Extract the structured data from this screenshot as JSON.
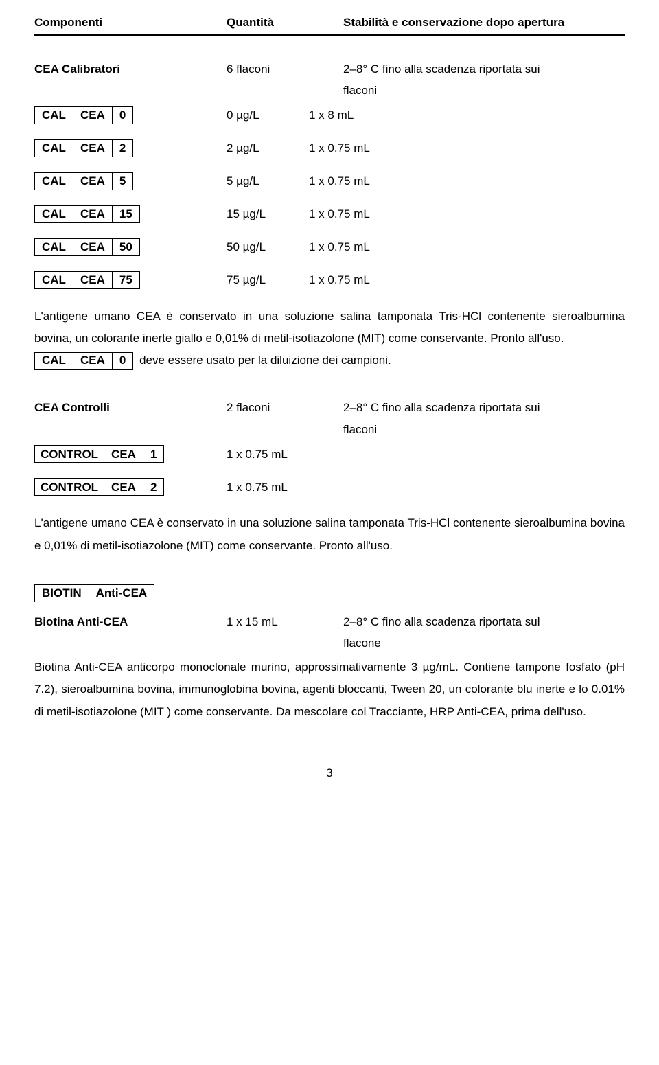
{
  "header": {
    "col1": "Componenti",
    "col2": "Quantità",
    "col3": "Stabilità e conservazione dopo apertura"
  },
  "cea_cal": {
    "title": "CEA Calibratori",
    "qty": "6 flaconi",
    "stability": "2–8° C fino alla scadenza riportata sui",
    "stability_line2": "flaconi",
    "items": [
      {
        "box": [
          "CAL",
          "CEA",
          "0"
        ],
        "val": "0 µg/L",
        "pkg": "1 x 8 mL"
      },
      {
        "box": [
          "CAL",
          "CEA",
          "2"
        ],
        "val": "2 µg/L",
        "pkg": "1 x 0.75 mL"
      },
      {
        "box": [
          "CAL",
          "CEA",
          "5"
        ],
        "val": "5 µg/L",
        "pkg": "1 x 0.75 mL"
      },
      {
        "box": [
          "CAL",
          "CEA",
          "15"
        ],
        "val": "15 µg/L",
        "pkg": "1 x 0.75 mL"
      },
      {
        "box": [
          "CAL",
          "CEA",
          "50"
        ],
        "val": "50 µg/L",
        "pkg": "1 x 0.75 mL"
      },
      {
        "box": [
          "CAL",
          "CEA",
          "75"
        ],
        "val": "75 µg/L",
        "pkg": "1 x 0.75 mL"
      }
    ],
    "desc1": "L'antigene umano CEA è conservato in una soluzione salina tamponata Tris-HCl contenente sieroalbumina bovina, un colorante inerte giallo e 0,01% di metil-isotiazolone (MIT) come conservante. Pronto all'uso.",
    "inline_box": [
      "CAL",
      "CEA",
      "0"
    ],
    "desc1_after": "deve essere usato per la diluizione dei campioni."
  },
  "cea_ctrl": {
    "title": "CEA Controlli",
    "qty": "2 flaconi",
    "stability": "2–8° C fino alla scadenza riportata sui",
    "stability_line2": "flaconi",
    "items": [
      {
        "box": [
          "CONTROL",
          "CEA",
          "1"
        ],
        "pkg": "1 x 0.75 mL"
      },
      {
        "box": [
          "CONTROL",
          "CEA",
          "2"
        ],
        "pkg": "1 x 0.75 mL"
      }
    ],
    "desc": "L'antigene  umano CEA è conservato in una soluzione salina tamponata Tris-HCl contenente sieroalbumina bovina e 0,01% di metil-isotiazolone (MIT) come conservante. Pronto all'uso."
  },
  "biotin": {
    "box": [
      "BIOTIN",
      "Anti-CEA"
    ],
    "title": "Biotina Anti-CEA",
    "qty": "1 x 15 mL",
    "stability": "2–8° C fino alla scadenza riportata sul",
    "stability_line2": "flacone",
    "desc": "Biotina Anti-CEA  anticorpo monoclonale murino, approssimativamente 3 µg/mL. Contiene tampone fosfato (pH 7.2), sieroalbumina bovina, immunoglobina bovina, agenti bloccanti, Tween 20, un colorante blu inerte e lo 0.01% di metil-isotiazolone (MIT ) come conservante. Da mescolare col Tracciante, HRP Anti-CEA, prima dell'uso."
  },
  "page": "3"
}
